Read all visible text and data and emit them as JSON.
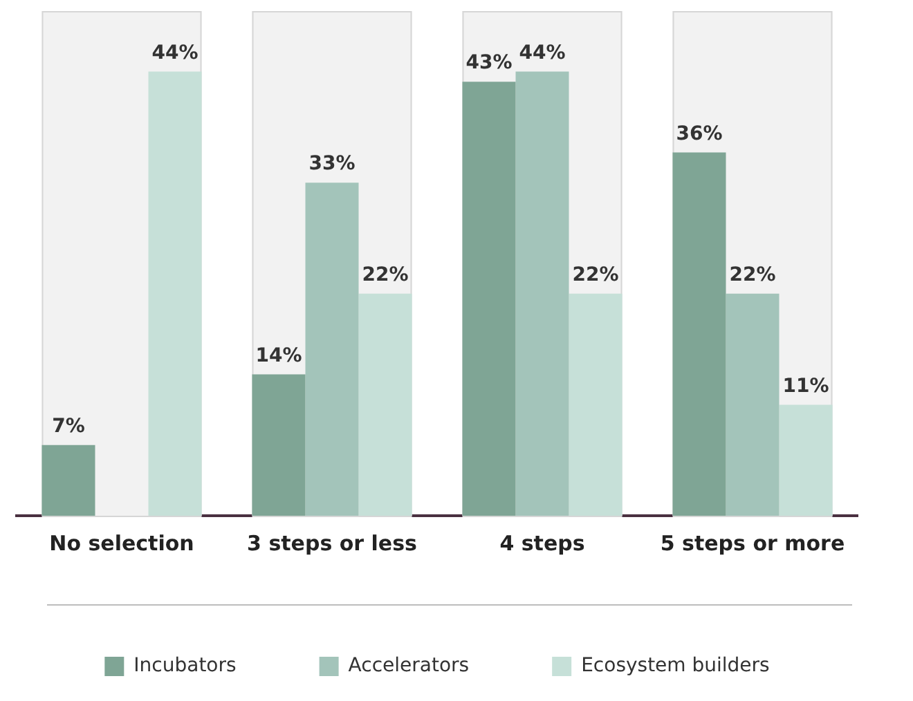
{
  "chart_data": {
    "type": "bar",
    "categories": [
      "No selection",
      "3 steps or less",
      "4 steps",
      "5 steps or more"
    ],
    "series": [
      {
        "name": "Incubators",
        "color": "#7fa595",
        "values": [
          7,
          14,
          43,
          36
        ],
        "value_labels": [
          "7%",
          "14%",
          "43%",
          "36%"
        ]
      },
      {
        "name": "Accelerators",
        "color": "#a3c4ba",
        "values": [
          null,
          33,
          44,
          22
        ],
        "value_labels": [
          null,
          "33%",
          "44%",
          "22%"
        ]
      },
      {
        "name": "Ecosystem builders",
        "color": "#c6e0d8",
        "values": [
          44,
          22,
          22,
          11
        ],
        "value_labels": [
          "44%",
          "22%",
          "22%",
          "11%"
        ]
      }
    ],
    "bands": [
      {
        "axis": "x",
        "from": "No selection",
        "to": "No selection",
        "color": "#f2f2f2"
      },
      {
        "axis": "x",
        "from": "3 steps or less",
        "to": "3 steps or less",
        "color": "#f2f2f2"
      },
      {
        "axis": "x",
        "from": "4 steps",
        "to": "4 steps",
        "color": "#f2f2f2"
      },
      {
        "axis": "x",
        "from": "5 steps or more",
        "to": "5 steps or more",
        "color": "#f2f2f2"
      }
    ],
    "ylim": [
      0,
      50
    ],
    "tick_labels": "x",
    "grid": false,
    "legend": "bottom"
  }
}
